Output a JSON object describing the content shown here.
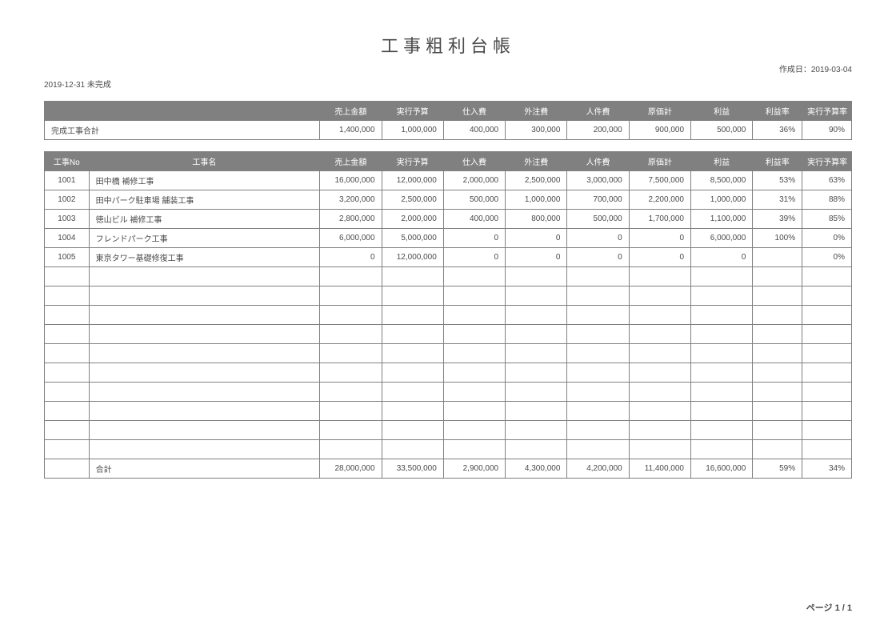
{
  "title": "工事粗利台帳",
  "create_date_label": "作成日：2019-03-04",
  "period_label": "2019-12-31 未完成",
  "page_footer": "ページ 1 / 1",
  "summary": {
    "headers": [
      "売上金額",
      "実行予算",
      "仕入費",
      "外注費",
      "人件費",
      "原価計",
      "利益",
      "利益率",
      "実行予算率"
    ],
    "row_label": "完成工事合計",
    "values": [
      "1,400,000",
      "1,000,000",
      "400,000",
      "300,000",
      "200,000",
      "900,000",
      "500,000",
      "36%",
      "90%"
    ]
  },
  "detail": {
    "headers": [
      "工事No",
      "工事名",
      "売上金額",
      "実行予算",
      "仕入費",
      "外注費",
      "人件費",
      "原価計",
      "利益",
      "利益率",
      "実行予算率"
    ],
    "rows": [
      {
        "no": "1001",
        "name": "田中橋 補修工事",
        "values": [
          "16,000,000",
          "12,000,000",
          "2,000,000",
          "2,500,000",
          "3,000,000",
          "7,500,000",
          "8,500,000",
          "53%",
          "63%"
        ]
      },
      {
        "no": "1002",
        "name": "田中パーク駐車場 舗装工事",
        "values": [
          "3,200,000",
          "2,500,000",
          "500,000",
          "1,000,000",
          "700,000",
          "2,200,000",
          "1,000,000",
          "31%",
          "88%"
        ]
      },
      {
        "no": "1003",
        "name": "徳山ビル 補修工事",
        "values": [
          "2,800,000",
          "2,000,000",
          "400,000",
          "800,000",
          "500,000",
          "1,700,000",
          "1,100,000",
          "39%",
          "85%"
        ]
      },
      {
        "no": "1004",
        "name": "フレンドパーク工事",
        "values": [
          "6,000,000",
          "5,000,000",
          "0",
          "0",
          "0",
          "0",
          "6,000,000",
          "100%",
          "0%"
        ]
      },
      {
        "no": "1005",
        "name": "東京タワー基礎修復工事",
        "values": [
          "0",
          "12,000,000",
          "0",
          "0",
          "0",
          "0",
          "0",
          "",
          "0%"
        ]
      }
    ],
    "empty_rows": 10,
    "gokei_label": "合計",
    "gokei_values": [
      "28,000,000",
      "33,500,000",
      "2,900,000",
      "4,300,000",
      "4,200,000",
      "11,400,000",
      "16,600,000",
      "59%",
      "34%"
    ]
  },
  "style": {
    "header_bg": "#808080",
    "header_text": "#ffffff",
    "border": "#808080",
    "text_color": "#4a4a4a",
    "background": "#ffffff"
  }
}
